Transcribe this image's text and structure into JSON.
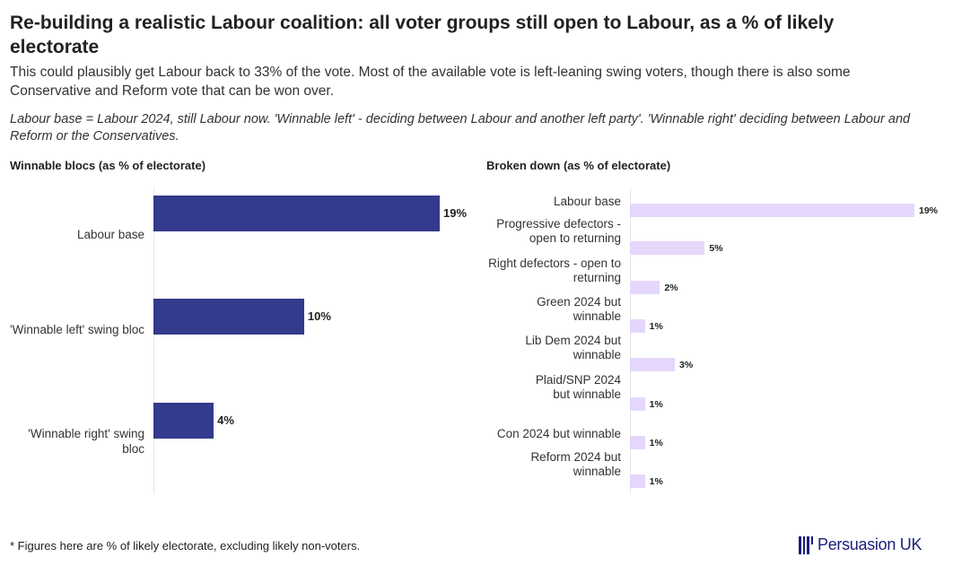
{
  "header": {
    "title": "Re-building a realistic Labour coalition: all voter groups still open to Labour, as a % of likely electorate",
    "subtitle": "This could plausibly get Labour back to 33% of the vote. Most of the available vote is left-leaning swing voters, though there is also some Conservative and Reform vote that can be won over.",
    "note": "Labour base = Labour 2024, still Labour now. 'Winnable left' - deciding between Labour and another left party'. 'Winnable right' deciding between Labour and Reform or the Conservatives."
  },
  "chart_data": [
    {
      "type": "bar",
      "orientation": "horizontal",
      "title": "Winnable blocs (as % of electorate)",
      "categories": [
        "Labour base",
        "'Winnable left' swing bloc",
        "'Winnable right' swing bloc"
      ],
      "values": [
        19,
        10,
        4
      ],
      "value_labels": [
        "19%",
        "10%",
        "4%"
      ],
      "color": "#343a8c",
      "xlim": [
        0,
        19
      ]
    },
    {
      "type": "bar",
      "orientation": "horizontal",
      "title": "Broken down (as % of electorate)",
      "categories": [
        "Labour base",
        "Progressive defectors - open to returning",
        "Right defectors - open to returning",
        "Green 2024 but winnable",
        "Lib Dem 2024 but winnable",
        "Plaid/SNP 2024 but winnable",
        "Con 2024 but winnable",
        "Reform 2024 but winnable"
      ],
      "values": [
        19,
        5,
        2,
        1,
        3,
        1,
        1,
        1
      ],
      "value_labels": [
        "19%",
        "5%",
        "2%",
        "1%",
        "3%",
        "1%",
        "1%",
        "1%"
      ],
      "color": "#e4d7fb",
      "xlim": [
        0,
        19
      ]
    }
  ],
  "footer": {
    "footnote": "* Figures here are % of likely electorate, excluding likely non-voters.",
    "logo": "Persuasion UK"
  }
}
